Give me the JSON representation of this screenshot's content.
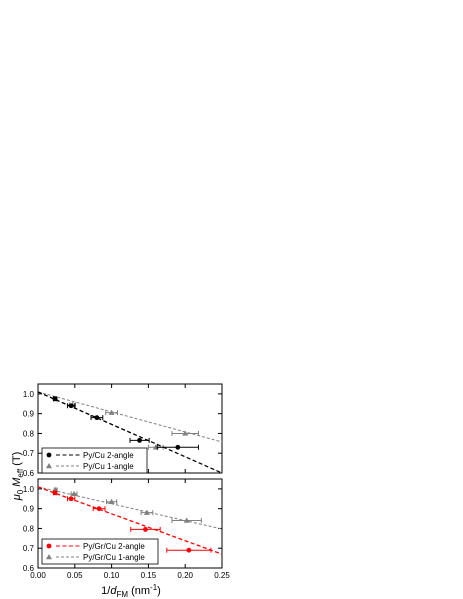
{
  "chart_data": [
    {
      "type": "scatter",
      "panel": "top",
      "xlim": [
        0,
        0.25
      ],
      "ylim": [
        0.6,
        1.05
      ],
      "yticks": [
        0.6,
        0.7,
        0.8,
        0.9,
        1.0
      ],
      "ytick_labels": [
        "0.6",
        "0.7",
        "0.8",
        "0.9",
        "1.0"
      ],
      "xticks": [
        0,
        0.05,
        0.1,
        0.15,
        0.2,
        0.25
      ],
      "grid": false,
      "legend_position": "bottom-left",
      "series": [
        {
          "name": "Py/Cu 2-angle",
          "marker": "circle",
          "color": "#000000",
          "fit": {
            "style": "dashed",
            "x": [
              0,
              0.25
            ],
            "y": [
              1.01,
              0.6
            ]
          },
          "x": [
            0.023,
            0.045,
            0.08,
            0.138,
            0.19
          ],
          "y": [
            0.975,
            0.94,
            0.88,
            0.765,
            0.73
          ],
          "xerr": [
            0.002,
            0.005,
            0.008,
            0.013,
            0.028
          ]
        },
        {
          "name": "Py/Cu 1-angle",
          "marker": "triangle",
          "color": "#808080",
          "fit": {
            "style": "dashed",
            "x": [
              0,
              0.25
            ],
            "y": [
              1.01,
              0.757
            ]
          },
          "x": [
            0.024,
            0.047,
            0.1,
            0.16,
            0.2
          ],
          "y": [
            0.975,
            0.945,
            0.905,
            0.73,
            0.8
          ],
          "xerr": [
            0.002,
            0.004,
            0.008,
            0.01,
            0.018
          ]
        }
      ]
    },
    {
      "type": "scatter",
      "panel": "bottom",
      "xlim": [
        0,
        0.25
      ],
      "ylim": [
        0.6,
        1.05
      ],
      "yticks": [
        0.6,
        0.7,
        0.8,
        0.9,
        1.0
      ],
      "ytick_labels": [
        "0.6",
        "0.7",
        "0.8",
        "0.9",
        "1.0"
      ],
      "xticks": [
        0,
        0.05,
        0.1,
        0.15,
        0.2,
        0.25
      ],
      "xtick_labels": [
        "0.00",
        "0.05",
        "0.10",
        "0.15",
        "0.20",
        "0.25"
      ],
      "grid": false,
      "legend_position": "bottom-left",
      "series": [
        {
          "name": "Py/Gr/Cu 2-angle",
          "marker": "circle",
          "color": "#ff0000",
          "fit": {
            "style": "dashed",
            "x": [
              0,
              0.25
            ],
            "y": [
              1.01,
              0.67
            ]
          },
          "x": [
            0.023,
            0.045,
            0.083,
            0.146,
            0.205
          ],
          "y": [
            0.98,
            0.95,
            0.9,
            0.795,
            0.69
          ],
          "xerr": [
            0.002,
            0.005,
            0.008,
            0.02,
            0.03
          ]
        },
        {
          "name": "Py/Gr/Cu 1-angle",
          "marker": "triangle",
          "color": "#808080",
          "fit": {
            "style": "dashed",
            "x": [
              0,
              0.25
            ],
            "y": [
              1.01,
              0.797
            ]
          },
          "x": [
            0.024,
            0.049,
            0.1,
            0.148,
            0.202
          ],
          "y": [
            0.995,
            0.975,
            0.935,
            0.88,
            0.84
          ],
          "xerr": [
            0.002,
            0.004,
            0.007,
            0.008,
            0.02
          ]
        }
      ]
    }
  ],
  "axes": {
    "ylabel": "μ0 Meff (T)",
    "ylabel_parts": [
      "μ",
      "0",
      " M",
      "eff",
      " (T)"
    ],
    "xlabel": "1/dFM (nm-1)",
    "xlabel_parts": [
      "1/",
      "d",
      "FM",
      " (nm",
      "-1",
      ")"
    ]
  },
  "colors": {
    "black": "#000000",
    "gray": "#808080",
    "red": "#ff0000"
  }
}
